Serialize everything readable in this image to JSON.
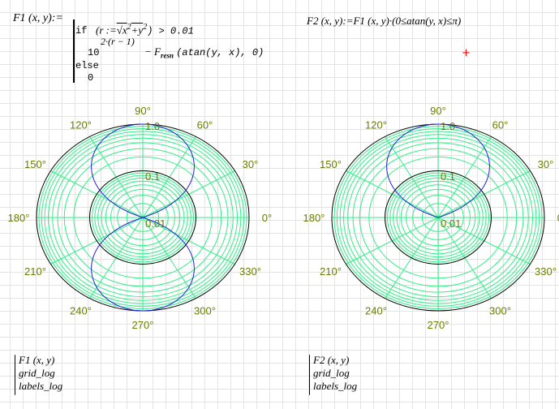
{
  "def1": {
    "lhs": "F1 (x, y):=",
    "if": "if",
    "cond": "(r:=√x²+y²) > 0.01",
    "cond_lhs": "(r :=",
    "cond_sqrt": "√x",
    "cond_sq1": "2",
    "cond_plus": "+y",
    "cond_sq2": "2",
    "cond_rhs": ") > 0.01",
    "base": "10",
    "exp": "2·(r − 1)",
    "minus": "− F",
    "sub": "resn",
    "tail": "(atan(y, x), 0)",
    "else": "else",
    "zero": "0"
  },
  "def2": {
    "text": "F2 (x, y):=F1 (x, y)·(0≤atan(y, x)≤π)"
  },
  "plots": [
    {
      "legend": [
        "F1 (x, y)",
        "grid_log",
        "labels_log"
      ],
      "half": false
    },
    {
      "legend": [
        "F2 (x, y)",
        "grid_log",
        "labels_log"
      ],
      "half": true
    }
  ],
  "chart_data": {
    "type": "polar",
    "scale": "log",
    "rlim": [
      0.01,
      1.0
    ],
    "radial_tick_labels": [
      "1.0",
      "0.1",
      "0.01"
    ],
    "angle_tick_labels": [
      "0°",
      "30°",
      "60°",
      "90°",
      "120°",
      "150°",
      "180°",
      "210°",
      "240°",
      "270°",
      "300°",
      "330°"
    ],
    "grid": true,
    "colors": {
      "grid": "#33ee88",
      "curve": "#2222dd",
      "decade": "#000000",
      "labels": "#6b7d00"
    }
  },
  "cursor_color": "#ff0000"
}
